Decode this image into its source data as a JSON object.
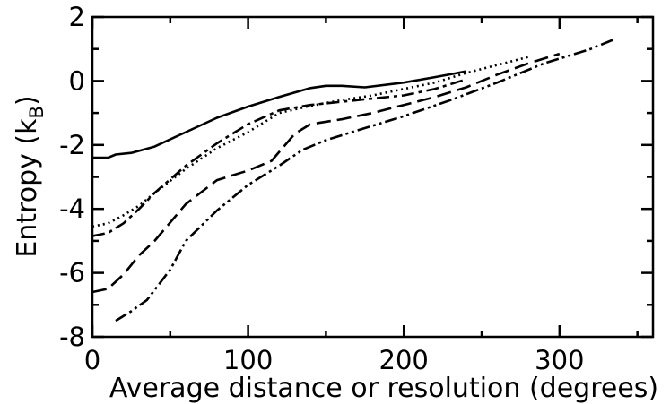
{
  "chart_data": {
    "type": "line",
    "title": "",
    "xlabel": "Average distance or resolution (degrees)",
    "ylabel_main": "Entropy (k",
    "ylabel_sub": "B",
    "ylabel_close": ")",
    "xlim": [
      0,
      360
    ],
    "ylim": [
      -8,
      2
    ],
    "xticks": [
      0,
      100,
      200,
      300
    ],
    "yticks": [
      -8,
      -6,
      -4,
      -2,
      0,
      2
    ],
    "grid": false,
    "series": [
      {
        "dash": "",
        "x": [
          0,
          10,
          15,
          25,
          40,
          60,
          80,
          100,
          120,
          140,
          150,
          160,
          175,
          200,
          220,
          240
        ],
        "y": [
          -2.4,
          -2.4,
          -2.3,
          -2.25,
          -2.05,
          -1.6,
          -1.15,
          -0.8,
          -0.5,
          -0.22,
          -0.15,
          -0.15,
          -0.2,
          -0.05,
          0.12,
          0.3
        ]
      },
      {
        "dash": "2 4",
        "x": [
          0,
          10,
          20,
          30,
          40,
          60,
          80,
          100,
          120,
          140,
          160,
          180,
          200,
          220,
          240,
          260,
          280
        ],
        "y": [
          -4.55,
          -4.45,
          -4.2,
          -3.9,
          -3.5,
          -2.75,
          -2.1,
          -1.6,
          -1.0,
          -0.78,
          -0.6,
          -0.45,
          -0.25,
          -0.05,
          0.25,
          0.5,
          0.75
        ]
      },
      {
        "dash": "14 5 4 5",
        "x": [
          0,
          10,
          20,
          30,
          40,
          60,
          80,
          100,
          120,
          140,
          160,
          180,
          200,
          220,
          240
        ],
        "y": [
          -4.85,
          -4.75,
          -4.45,
          -4.0,
          -3.5,
          -2.65,
          -1.95,
          -1.35,
          -0.92,
          -0.75,
          -0.65,
          -0.55,
          -0.45,
          -0.25,
          0.05
        ]
      },
      {
        "dash": "16 7",
        "x": [
          0,
          10,
          20,
          30,
          40,
          60,
          80,
          100,
          115,
          130,
          140,
          160,
          180,
          200,
          220,
          240,
          260,
          280,
          300
        ],
        "y": [
          -6.6,
          -6.5,
          -6.05,
          -5.45,
          -5.0,
          -3.85,
          -3.1,
          -2.8,
          -2.5,
          -1.65,
          -1.35,
          -1.2,
          -1.0,
          -0.75,
          -0.5,
          -0.2,
          0.2,
          0.55,
          0.85
        ]
      },
      {
        "dash": "14 4 3 4 3 4",
        "x": [
          15,
          25,
          35,
          50,
          60,
          80,
          100,
          120,
          135,
          150,
          170,
          200,
          230,
          260,
          290,
          320,
          335
        ],
        "y": [
          -7.5,
          -7.2,
          -6.85,
          -5.9,
          -5.0,
          -4.05,
          -3.25,
          -2.65,
          -2.15,
          -1.85,
          -1.55,
          -1.1,
          -0.6,
          -0.05,
          0.55,
          1.0,
          1.3
        ]
      }
    ]
  }
}
